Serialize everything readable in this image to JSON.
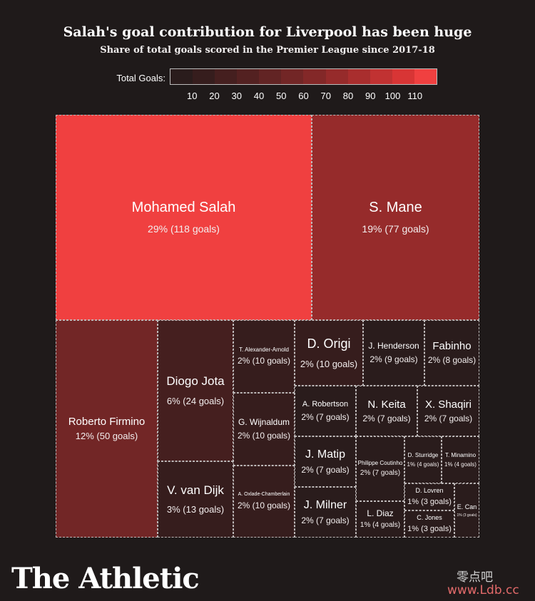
{
  "header": {
    "title": "Salah's goal contribution for Liverpool has been huge",
    "subtitle": "Share of total goals scored in the Premier League since 2017-18"
  },
  "legend": {
    "label": "Total Goals:",
    "ticks": [
      "10",
      "20",
      "30",
      "40",
      "50",
      "60",
      "70",
      "80",
      "90",
      "100",
      "110"
    ],
    "colors": [
      "#2a1c1c",
      "#361d1d",
      "#451f1f",
      "#532121",
      "#622424",
      "#722626",
      "#832828",
      "#962b2b",
      "#a92e2e",
      "#c13232",
      "#d83535",
      "#f04040"
    ]
  },
  "branding": {
    "logo": "The Athletic",
    "watermark_cn": "零点吧",
    "watermark_url": "www.Ldb.cc"
  },
  "chart_data": {
    "type": "treemap",
    "title": "Salah's goal contribution for Liverpool has been huge",
    "subtitle": "Share of total goals scored in the Premier League since 2017-18",
    "color_scale": "Total Goals",
    "items": [
      {
        "name": "Mohamed Salah",
        "goals": 118,
        "label": "29% (118 goals)"
      },
      {
        "name": "S. Mane",
        "goals": 77,
        "label": "19% (77 goals)"
      },
      {
        "name": "Roberto Firmino",
        "goals": 50,
        "label": "12% (50 goals)"
      },
      {
        "name": "Diogo Jota",
        "goals": 24,
        "label": "6% (24 goals)"
      },
      {
        "name": "V. van Dijk",
        "goals": 13,
        "label": "3% (13 goals)"
      },
      {
        "name": "T. Alexander-Arnold",
        "goals": 10,
        "label": "2% (10 goals)"
      },
      {
        "name": "G. Wijnaldum",
        "goals": 10,
        "label": "2% (10 goals)"
      },
      {
        "name": "A. Oxlade-Chamberlain",
        "goals": 10,
        "label": "2% (10 goals)"
      },
      {
        "name": "D. Origi",
        "goals": 10,
        "label": "2% (10 goals)"
      },
      {
        "name": "J. Henderson",
        "goals": 9,
        "label": "2% (9 goals)"
      },
      {
        "name": "Fabinho",
        "goals": 8,
        "label": "2% (8 goals)"
      },
      {
        "name": "A. Robertson",
        "goals": 7,
        "label": "2% (7 goals)"
      },
      {
        "name": "N. Keita",
        "goals": 7,
        "label": "2% (7 goals)"
      },
      {
        "name": "X. Shaqiri",
        "goals": 7,
        "label": "2% (7 goals)"
      },
      {
        "name": "J. Matip",
        "goals": 7,
        "label": "2% (7 goals)"
      },
      {
        "name": "J. Milner",
        "goals": 7,
        "label": "2% (7 goals)"
      },
      {
        "name": "Philippe Coutinho",
        "goals": 7,
        "label": "2% (7 goals)"
      },
      {
        "name": "L. Diaz",
        "goals": 4,
        "label": "1% (4 goals)"
      },
      {
        "name": "D. Sturridge",
        "goals": 4,
        "label": "1% (4 goals)"
      },
      {
        "name": "T. Minamino",
        "goals": 4,
        "label": "1% (4 goals)"
      },
      {
        "name": "D. Lovren",
        "goals": 3,
        "label": "1% (3 goals)"
      },
      {
        "name": "C. Jones",
        "goals": 3,
        "label": "1% (3 goals)"
      },
      {
        "name": "E. Can",
        "goals": 3,
        "label": "1% (3 goals)"
      }
    ]
  }
}
